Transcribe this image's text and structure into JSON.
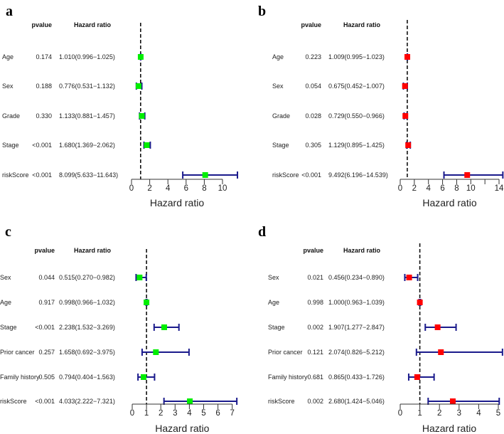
{
  "chart_data": [
    {
      "type": "forest",
      "panel_label": "a",
      "col_pvalue": "pvalue",
      "col_hr": "Hazard ratio",
      "xlabel": "Hazard ratio",
      "box_color": "#00ee00",
      "ci_color": "#1a1a8c",
      "reference_line": 1,
      "xlim": [
        0,
        11.643
      ],
      "xticks": [
        0,
        2,
        4,
        6,
        8,
        10
      ],
      "xtick_labels": [
        "0",
        "2",
        "4",
        "6",
        "8",
        "10"
      ],
      "rows": [
        {
          "name": "Age",
          "pvalue": "0.174",
          "hr_text": "1.010(0.996−1.025)",
          "hr": 1.01,
          "lo": 0.996,
          "hi": 1.025
        },
        {
          "name": "Sex",
          "pvalue": "0.188",
          "hr_text": "0.776(0.531−1.132)",
          "hr": 0.776,
          "lo": 0.531,
          "hi": 1.132
        },
        {
          "name": "Grade",
          "pvalue": "0.330",
          "hr_text": "1.133(0.881−1.457)",
          "hr": 1.133,
          "lo": 0.881,
          "hi": 1.457
        },
        {
          "name": "Stage",
          "pvalue": "<0.001",
          "hr_text": "1.680(1.369−2.062)",
          "hr": 1.68,
          "lo": 1.369,
          "hi": 2.062
        },
        {
          "name": "riskScore",
          "pvalue": "<0.001",
          "hr_text": "8.099(5.633−11.643)",
          "hr": 8.099,
          "lo": 5.633,
          "hi": 11.643
        }
      ]
    },
    {
      "type": "forest",
      "panel_label": "b",
      "col_pvalue": "pvalue",
      "col_hr": "Hazard ratio",
      "xlabel": "Hazard ratio",
      "box_color": "#ff0000",
      "ci_color": "#1a1a8c",
      "reference_line": 1,
      "xlim": [
        0,
        14.539
      ],
      "xticks": [
        0,
        2,
        4,
        6,
        8,
        10,
        12,
        14
      ],
      "xtick_labels": [
        "0",
        "2",
        "4",
        "6",
        "8",
        "10",
        "",
        "14"
      ],
      "rows": [
        {
          "name": "Age",
          "pvalue": "0.223",
          "hr_text": "1.009(0.995−1.023)",
          "hr": 1.009,
          "lo": 0.995,
          "hi": 1.023
        },
        {
          "name": "Sex",
          "pvalue": "0.054",
          "hr_text": "0.675(0.452−1.007)",
          "hr": 0.675,
          "lo": 0.452,
          "hi": 1.007
        },
        {
          "name": "Grade",
          "pvalue": "0.028",
          "hr_text": "0.729(0.550−0.966)",
          "hr": 0.729,
          "lo": 0.55,
          "hi": 0.966
        },
        {
          "name": "Stage",
          "pvalue": "0.305",
          "hr_text": "1.129(0.895−1.425)",
          "hr": 1.129,
          "lo": 0.895,
          "hi": 1.425
        },
        {
          "name": "riskScore",
          "pvalue": "<0.001",
          "hr_text": "9.492(6.196−14.539)",
          "hr": 9.492,
          "lo": 6.196,
          "hi": 14.539
        }
      ]
    },
    {
      "type": "forest",
      "panel_label": "c",
      "col_pvalue": "pvalue",
      "col_hr": "Hazard ratio",
      "xlabel": "Hazard ratio",
      "box_color": "#00ee00",
      "ci_color": "#1a1a8c",
      "reference_line": 1,
      "xlim": [
        0,
        7.321
      ],
      "xticks": [
        0,
        1,
        2,
        3,
        4,
        5,
        6,
        7
      ],
      "xtick_labels": [
        "0",
        "1",
        "2",
        "3",
        "4",
        "5",
        "6",
        "7"
      ],
      "rows": [
        {
          "name": "Sex",
          "pvalue": "0.044",
          "hr_text": "0.515(0.270−0.982)",
          "hr": 0.515,
          "lo": 0.27,
          "hi": 0.982
        },
        {
          "name": "Age",
          "pvalue": "0.917",
          "hr_text": "0.998(0.966−1.032)",
          "hr": 0.998,
          "lo": 0.966,
          "hi": 1.032
        },
        {
          "name": "Stage",
          "pvalue": "<0.001",
          "hr_text": "2.238(1.532−3.269)",
          "hr": 2.238,
          "lo": 1.532,
          "hi": 3.269
        },
        {
          "name": "Prior cancer",
          "pvalue": "0.257",
          "hr_text": "1.658(0.692−3.975)",
          "hr": 1.658,
          "lo": 0.692,
          "hi": 3.975
        },
        {
          "name": "Family history",
          "pvalue": "0.505",
          "hr_text": "0.794(0.404−1.563)",
          "hr": 0.794,
          "lo": 0.404,
          "hi": 1.563
        },
        {
          "name": "riskScore",
          "pvalue": "<0.001",
          "hr_text": "4.033(2.222−7.321)",
          "hr": 4.033,
          "lo": 2.222,
          "hi": 7.321
        }
      ]
    },
    {
      "type": "forest",
      "panel_label": "d",
      "col_pvalue": "pvalue",
      "col_hr": "Hazard ratio",
      "xlabel": "Hazard ratio",
      "box_color": "#ff0000",
      "ci_color": "#1a1a8c",
      "reference_line": 1,
      "xlim": [
        0,
        5.212
      ],
      "xticks": [
        0,
        1,
        2,
        3,
        4,
        5
      ],
      "xtick_labels": [
        "0",
        "1",
        "2",
        "3",
        "4",
        "5"
      ],
      "rows": [
        {
          "name": "Sex",
          "pvalue": "0.021",
          "hr_text": "0.456(0.234−0.890)",
          "hr": 0.456,
          "lo": 0.234,
          "hi": 0.89
        },
        {
          "name": "Age",
          "pvalue": "0.998",
          "hr_text": "1.000(0.963−1.039)",
          "hr": 1.0,
          "lo": 0.963,
          "hi": 1.039
        },
        {
          "name": "Stage",
          "pvalue": "0.002",
          "hr_text": "1.907(1.277−2.847)",
          "hr": 1.907,
          "lo": 1.277,
          "hi": 2.847
        },
        {
          "name": "Prior cancer",
          "pvalue": "0.121",
          "hr_text": "2.074(0.826−5.212)",
          "hr": 2.074,
          "lo": 0.826,
          "hi": 5.212
        },
        {
          "name": "Family history",
          "pvalue": "0.681",
          "hr_text": "0.865(0.433−1.726)",
          "hr": 0.865,
          "lo": 0.433,
          "hi": 1.726
        },
        {
          "name": "riskScore",
          "pvalue": "0.002",
          "hr_text": "2.680(1.424−5.046)",
          "hr": 2.68,
          "lo": 1.424,
          "hi": 5.046
        }
      ]
    }
  ]
}
